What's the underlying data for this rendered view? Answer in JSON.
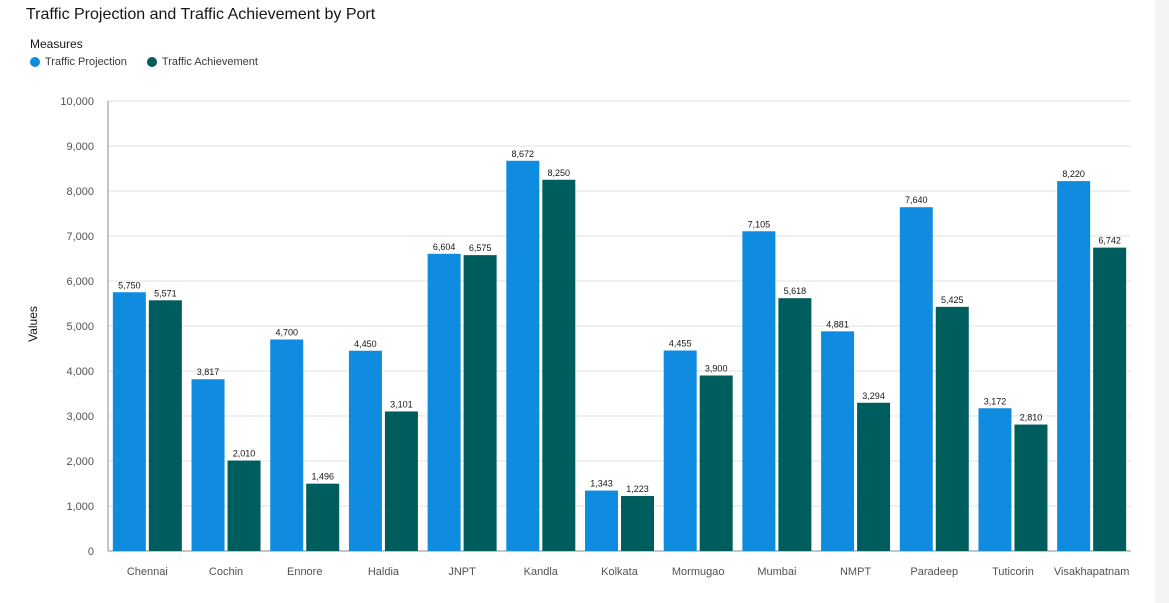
{
  "title": "Traffic Projection and Traffic Achievement by Port",
  "legend": {
    "title": "Measures",
    "items": [
      {
        "label": "Traffic Projection",
        "color": "#0f8ce0"
      },
      {
        "label": "Traffic Achievement",
        "color": "#005d5d"
      }
    ]
  },
  "chart_data": {
    "type": "bar",
    "title": "Traffic Projection and Traffic Achievement by Port",
    "xlabel": "",
    "ylabel": "Values",
    "ylim": [
      0,
      10000
    ],
    "yticks": [
      "0",
      "1,000",
      "2,000",
      "3,000",
      "4,000",
      "5,000",
      "6,000",
      "7,000",
      "8,000",
      "9,000",
      "10,000"
    ],
    "grid": true,
    "legend_position": "top-left",
    "categories": [
      "Chennai",
      "Cochin",
      "Ennore",
      "Haldia",
      "JNPT",
      "Kandla",
      "Kolkata",
      "Mormugao",
      "Mumbai",
      "NMPT",
      "Paradeep",
      "Tuticorin",
      "Visakhapatnam"
    ],
    "series": [
      {
        "name": "Traffic Projection",
        "color": "#0f8ce0",
        "values": [
          5750,
          3817,
          4700,
          4450,
          6604,
          8672,
          1343,
          4455,
          7105,
          4881,
          7640,
          3172,
          8220
        ],
        "labels": [
          "5,750",
          "3,817",
          "4,700",
          "4,450",
          "6,604",
          "8,672",
          "1,343",
          "4,455",
          "7,105",
          "4,881",
          "7,640",
          "3,172",
          "8,220"
        ]
      },
      {
        "name": "Traffic Achievement",
        "color": "#005d5d",
        "values": [
          5571,
          2010,
          1496,
          3101,
          6575,
          8250,
          1223,
          3900,
          5618,
          3294,
          5425,
          2810,
          6742
        ],
        "labels": [
          "5,571",
          "2,010",
          "1,496",
          "3,101",
          "6,575",
          "8,250",
          "1,223",
          "3,900",
          "5,618",
          "3,294",
          "5,425",
          "2,810",
          "6,742"
        ]
      }
    ]
  }
}
